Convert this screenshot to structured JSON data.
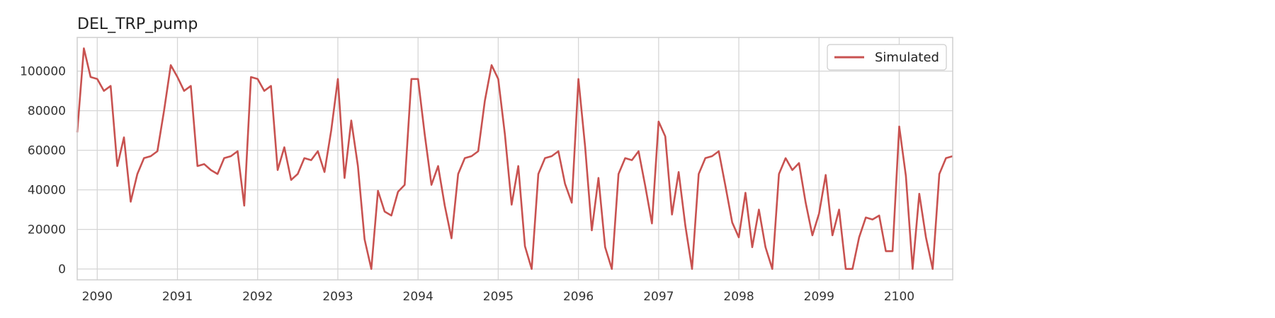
{
  "chart_data": {
    "type": "line",
    "title": "DEL_TRP_pump",
    "xlabel": "",
    "ylabel": "",
    "xlim": [
      2089.75,
      2100.667
    ],
    "ylim": [
      -5500,
      117000
    ],
    "x_ticks": [
      2090,
      2091,
      2092,
      2093,
      2094,
      2095,
      2096,
      2097,
      2098,
      2099,
      2100
    ],
    "x_tick_labels": [
      "2090",
      "2091",
      "2092",
      "2093",
      "2094",
      "2095",
      "2096",
      "2097",
      "2098",
      "2099",
      "2100"
    ],
    "y_ticks": [
      0,
      20000,
      40000,
      60000,
      80000,
      100000
    ],
    "y_tick_labels": [
      "0",
      "20000",
      "40000",
      "60000",
      "80000",
      "100000"
    ],
    "grid": true,
    "legend": "top-right",
    "colors": {
      "simulated": "#c85250"
    },
    "series": [
      {
        "name": "Simulated",
        "x": [
          2089.75,
          2089.833,
          2089.917,
          2090.0,
          2090.083,
          2090.167,
          2090.25,
          2090.333,
          2090.417,
          2090.5,
          2090.583,
          2090.667,
          2090.75,
          2090.833,
          2090.917,
          2091.0,
          2091.083,
          2091.167,
          2091.25,
          2091.333,
          2091.417,
          2091.5,
          2091.583,
          2091.667,
          2091.75,
          2091.833,
          2091.917,
          2092.0,
          2092.083,
          2092.167,
          2092.25,
          2092.333,
          2092.417,
          2092.5,
          2092.583,
          2092.667,
          2092.75,
          2092.833,
          2092.917,
          2093.0,
          2093.083,
          2093.167,
          2093.25,
          2093.333,
          2093.417,
          2093.5,
          2093.583,
          2093.667,
          2093.75,
          2093.833,
          2093.917,
          2094.0,
          2094.083,
          2094.167,
          2094.25,
          2094.333,
          2094.417,
          2094.5,
          2094.583,
          2094.667,
          2094.75,
          2094.833,
          2094.917,
          2095.0,
          2095.083,
          2095.167,
          2095.25,
          2095.333,
          2095.417,
          2095.5,
          2095.583,
          2095.667,
          2095.75,
          2095.833,
          2095.917,
          2096.0,
          2096.083,
          2096.167,
          2096.25,
          2096.333,
          2096.417,
          2096.5,
          2096.583,
          2096.667,
          2096.75,
          2096.833,
          2096.917,
          2097.0,
          2097.083,
          2097.167,
          2097.25,
          2097.333,
          2097.417,
          2097.5,
          2097.583,
          2097.667,
          2097.75,
          2097.833,
          2097.917,
          2098.0,
          2098.083,
          2098.167,
          2098.25,
          2098.333,
          2098.417,
          2098.5,
          2098.583,
          2098.667,
          2098.75,
          2098.833,
          2098.917,
          2099.0,
          2099.083,
          2099.167,
          2099.25,
          2099.333,
          2099.417,
          2099.5,
          2099.583,
          2099.667,
          2099.75,
          2099.833,
          2099.917,
          2100.0,
          2100.083,
          2100.167,
          2100.25,
          2100.333,
          2100.417,
          2100.5,
          2100.583,
          2100.667
        ],
        "y": [
          69000,
          111500,
          97000,
          96000,
          90000,
          92500,
          52000,
          66500,
          34000,
          48000,
          56000,
          57000,
          59500,
          80000,
          103000,
          97000,
          90000,
          92500,
          52000,
          53000,
          50000,
          48000,
          56000,
          57000,
          59500,
          32000,
          97000,
          96000,
          90000,
          92500,
          50000,
          61500,
          45000,
          48000,
          56000,
          55000,
          59500,
          49000,
          70000,
          96000,
          46000,
          75000,
          52000,
          15000,
          0,
          39500,
          29000,
          27000,
          39000,
          42500,
          96000,
          96000,
          68000,
          42500,
          52000,
          32000,
          15500,
          48000,
          56000,
          57000,
          59500,
          85000,
          103000,
          96000,
          68000,
          32500,
          52000,
          11500,
          0,
          48000,
          56000,
          57000,
          59500,
          43000,
          33500,
          96000,
          62000,
          19500,
          46000,
          11000,
          0,
          48000,
          56000,
          55000,
          59500,
          42000,
          23000,
          74500,
          67000,
          27500,
          49000,
          22000,
          0,
          48000,
          56000,
          57000,
          59500,
          42000,
          23500,
          16000,
          38500,
          11000,
          30000,
          11000,
          0,
          48000,
          56000,
          50000,
          53500,
          33500,
          17000,
          28000,
          47500,
          17000,
          30000,
          0,
          0,
          16000,
          26000,
          25000,
          27000,
          9000,
          9000,
          72000,
          47000,
          0,
          38000,
          16000,
          0,
          48000,
          56000,
          57000
        ]
      }
    ]
  }
}
